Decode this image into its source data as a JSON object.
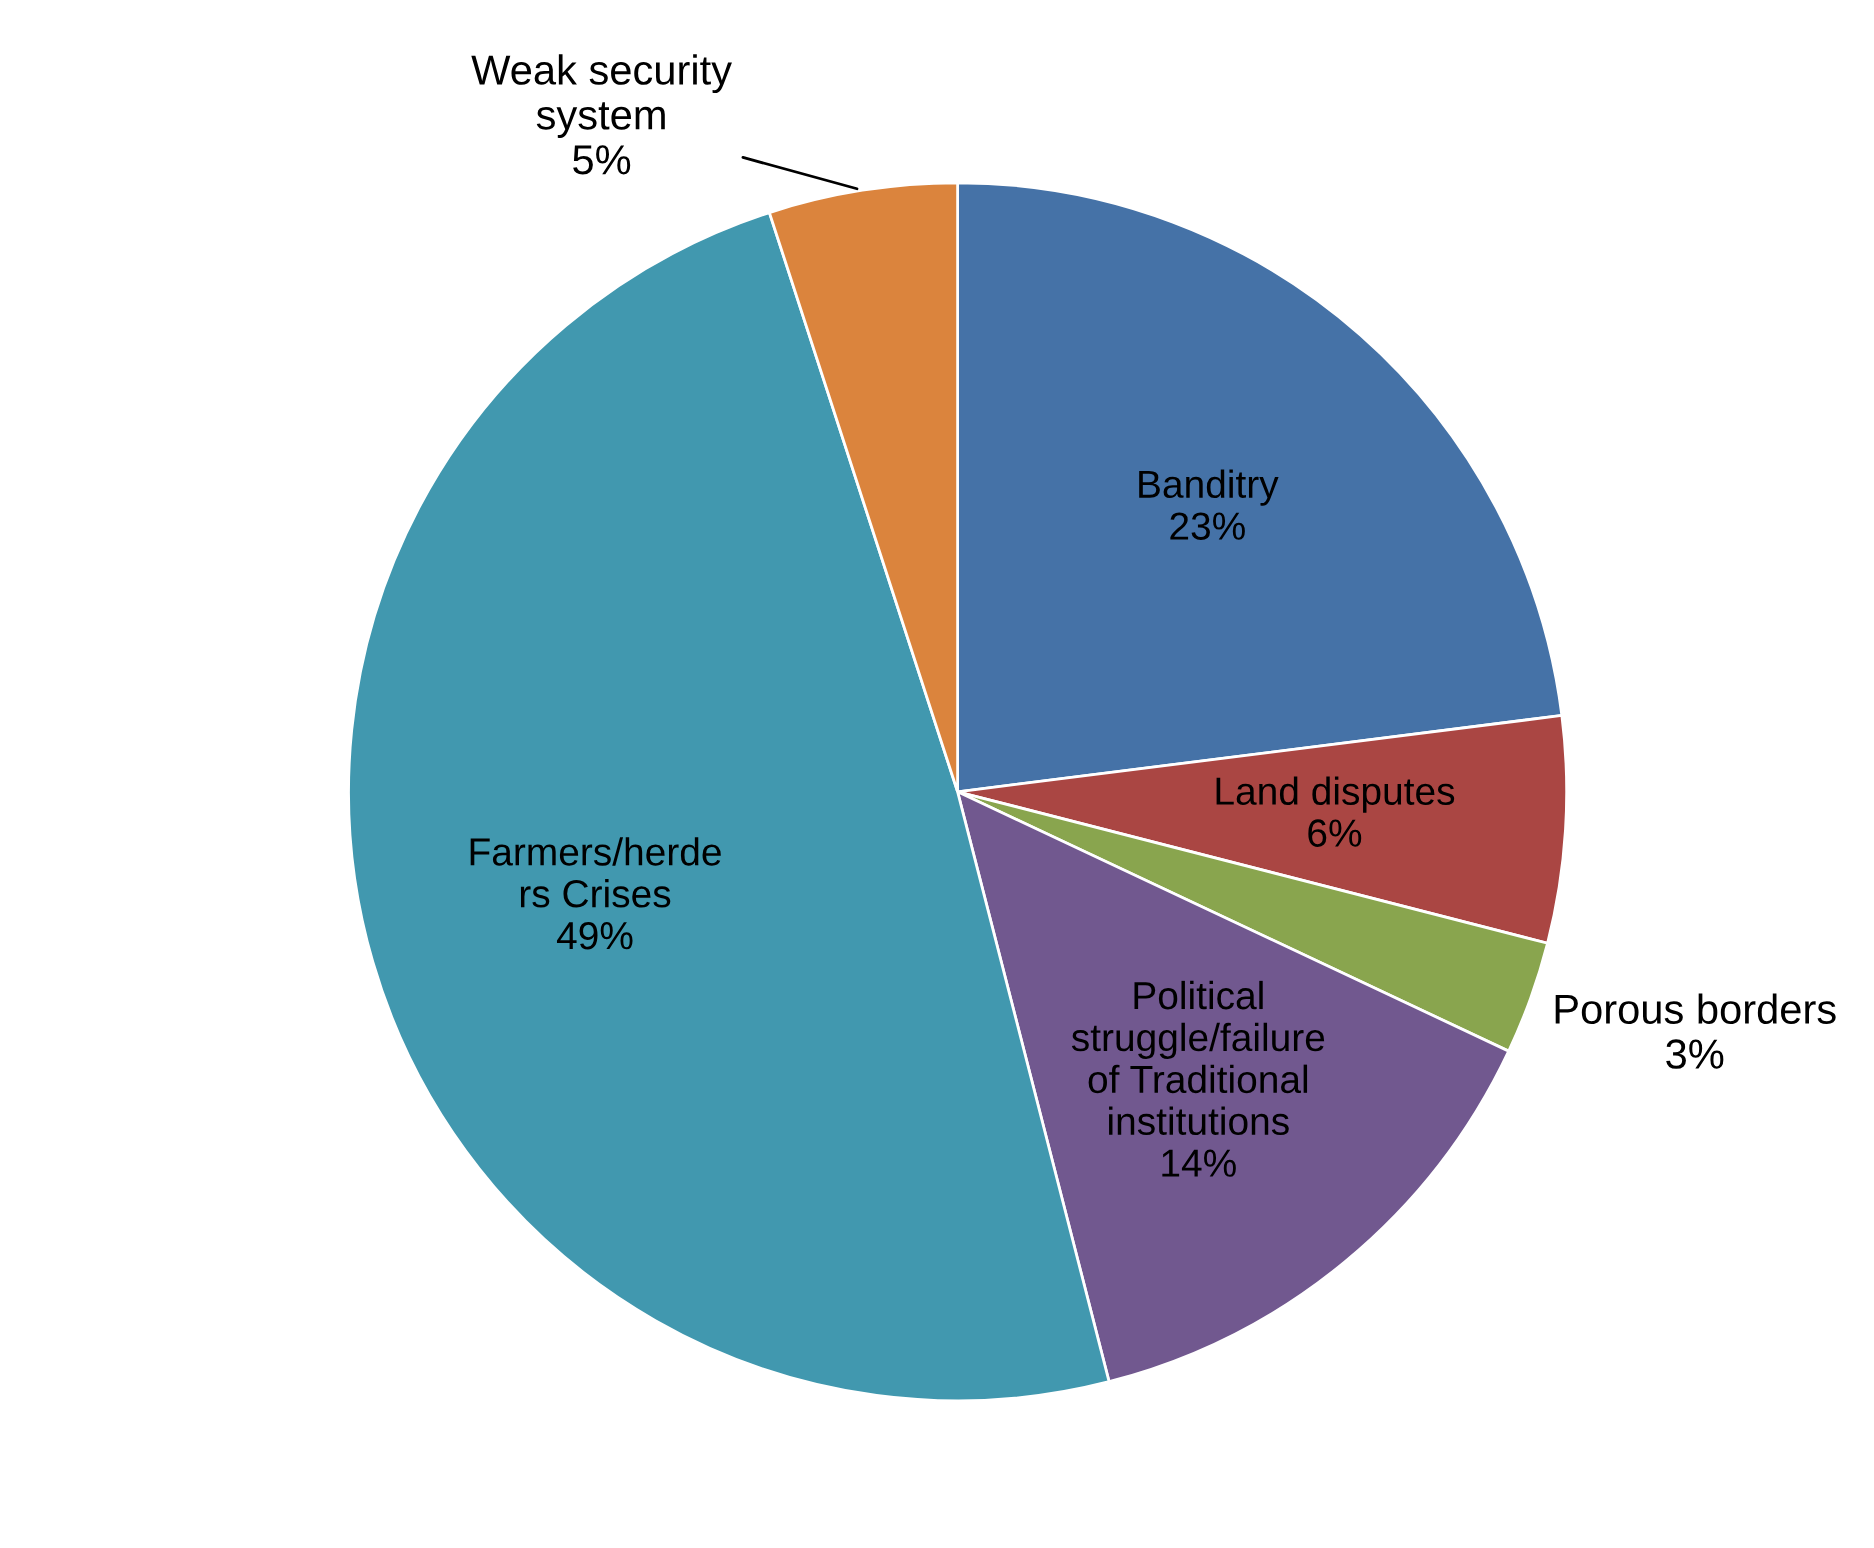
{
  "chart_data": {
    "type": "pie",
    "categories": [
      "Banditry",
      "Land disputes",
      "Porous borders",
      "Political\nstruggle/failure\nof Traditional\ninstitutions",
      "Farmers/herde\nrs Crises",
      "Weak security\nsystem"
    ],
    "values": [
      23,
      6,
      3,
      14,
      49,
      5
    ],
    "value_labels": [
      "23%",
      "6%",
      "3%",
      "14%",
      "49%",
      "5%"
    ],
    "colors": [
      "#4572a7",
      "#aa4643",
      "#89a54e",
      "#71588f",
      "#4198af",
      "#db843d"
    ],
    "legend": false
  }
}
